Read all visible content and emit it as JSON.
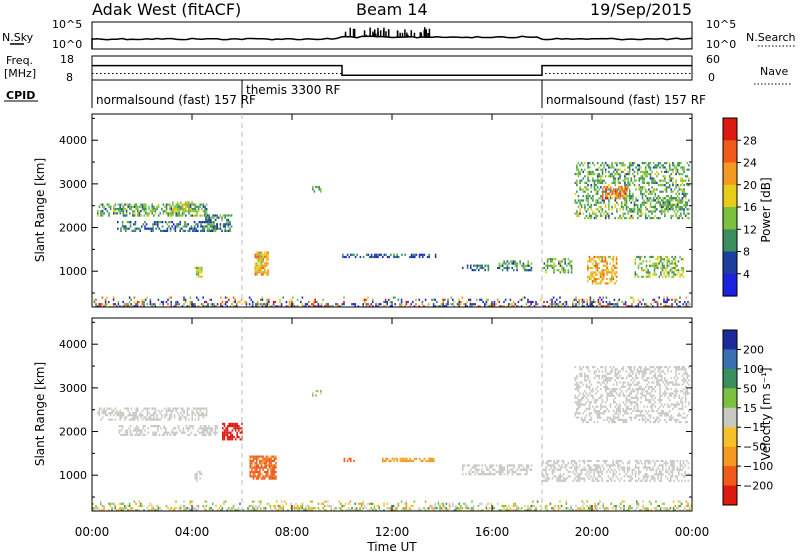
{
  "header": {
    "station": "Adak West (fitACF)",
    "beam": "Beam 14",
    "date": "19/Sep/2015"
  },
  "nsky": {
    "label": "N.Sky",
    "right_label": "N.Search",
    "left_ticks": [
      "10^5",
      "10^0"
    ],
    "right_ticks": [
      "10^5",
      "10^0"
    ]
  },
  "freq": {
    "label_line1": "Freq.",
    "label_line2": "[MHz]",
    "right_label": "Nave",
    "left_ticks": [
      "18",
      "8"
    ],
    "right_ticks": [
      "60",
      "0"
    ]
  },
  "cpid": {
    "label": "CPID",
    "segments": [
      {
        "start_hr": 0,
        "end_hr": 6,
        "text": "normalsound (fast) 157 RF"
      },
      {
        "start_hr": 6,
        "end_hr": 18,
        "text": "themis 3300 RF"
      },
      {
        "start_hr": 18,
        "end_hr": 24,
        "text": "normalsound (fast) 157 RF"
      }
    ]
  },
  "panels": {
    "power": {
      "ylabel": "Slant Range [km]",
      "cbar_label": "Power [dB]",
      "cbar_ticks": [
        "28",
        "24",
        "20",
        "16",
        "12",
        "8",
        "4"
      ],
      "cbar_colors": [
        "#dd1a10",
        "#f05a1a",
        "#f59a20",
        "#e8cc1a",
        "#7cc040",
        "#3a8f5c",
        "#1e3f9e",
        "#1d22e0"
      ]
    },
    "velocity": {
      "ylabel": "Slant Range [km]",
      "cbar_label": "Velocity [m s⁻¹]",
      "cbar_ticks": [
        "200",
        "100",
        "50",
        "15",
        "-15",
        "-50",
        "-100",
        "-200"
      ],
      "cbar_colors": [
        "#1e2a9a",
        "#3a6fb2",
        "#3a8f5c",
        "#7cc040",
        "#c9c9c4",
        "#f5c128",
        "#f59a20",
        "#f05a1a",
        "#dd1a10"
      ]
    }
  },
  "xaxis": {
    "label": "Time UT",
    "ticks": [
      "00:00",
      "04:00",
      "08:00",
      "12:00",
      "16:00",
      "20:00",
      "00:00"
    ]
  },
  "chart_data": {
    "type": "heatmap",
    "x_unit": "hours UT",
    "xlim": [
      0,
      24
    ],
    "y_unit": "km",
    "ylim": [
      180,
      4600
    ],
    "yticks": [
      1000,
      2000,
      3000,
      4000
    ],
    "x_tick_hours": [
      0,
      4,
      8,
      12,
      16,
      20,
      24
    ],
    "mode_boundaries_hr": [
      6,
      18
    ],
    "power_regions": [
      {
        "t0": 0.2,
        "t1": 4.6,
        "r0": 2250,
        "r1": 2550,
        "db": 12,
        "density": 0.55
      },
      {
        "t0": 1.0,
        "t1": 5.0,
        "r0": 1900,
        "r1": 2150,
        "db": 8,
        "density": 0.45
      },
      {
        "t0": 3.2,
        "t1": 4.0,
        "r0": 2350,
        "r1": 2600,
        "db": 16,
        "density": 0.6
      },
      {
        "t0": 4.4,
        "t1": 5.6,
        "r0": 1900,
        "r1": 2300,
        "db": 10,
        "density": 0.5
      },
      {
        "t0": 6.5,
        "t1": 7.1,
        "r0": 900,
        "r1": 1450,
        "db": 20,
        "density": 0.8
      },
      {
        "t0": 4.1,
        "t1": 4.4,
        "r0": 850,
        "r1": 1100,
        "db": 16,
        "density": 0.6
      },
      {
        "t0": 8.8,
        "t1": 9.2,
        "r0": 2800,
        "r1": 2950,
        "db": 12,
        "density": 0.5
      },
      {
        "t0": 10.0,
        "t1": 13.8,
        "r0": 1300,
        "r1": 1400,
        "db": 6,
        "density": 0.45
      },
      {
        "t0": 14.8,
        "t1": 15.9,
        "r0": 1000,
        "r1": 1150,
        "db": 8,
        "density": 0.5
      },
      {
        "t0": 16.2,
        "t1": 17.6,
        "r0": 1000,
        "r1": 1250,
        "db": 10,
        "density": 0.5
      },
      {
        "t0": 18.0,
        "t1": 19.2,
        "r0": 950,
        "r1": 1300,
        "db": 12,
        "density": 0.5
      },
      {
        "t0": 19.3,
        "t1": 23.9,
        "r0": 2200,
        "r1": 3500,
        "db": 12,
        "density": 0.42
      },
      {
        "t0": 20.4,
        "t1": 21.4,
        "r0": 2650,
        "r1": 2950,
        "db": 24,
        "density": 0.6
      },
      {
        "t0": 19.8,
        "t1": 21.0,
        "r0": 700,
        "r1": 1350,
        "db": 20,
        "density": 0.5
      },
      {
        "t0": 21.7,
        "t1": 23.7,
        "r0": 850,
        "r1": 1350,
        "db": 14,
        "density": 0.45
      },
      {
        "t0": 22.5,
        "t1": 23.8,
        "r0": 2350,
        "r1": 2700,
        "db": 12,
        "density": 0.45
      }
    ],
    "velocity_regions": [
      {
        "t0": 0.2,
        "t1": 4.6,
        "r0": 2250,
        "r1": 2550,
        "v": 0,
        "density": 0.55
      },
      {
        "t0": 1.0,
        "t1": 5.0,
        "r0": 1900,
        "r1": 2150,
        "v": 0,
        "density": 0.45
      },
      {
        "t0": 5.2,
        "t1": 6.0,
        "r0": 1800,
        "r1": 2200,
        "v": -220,
        "density": 0.6
      },
      {
        "t0": 6.3,
        "t1": 7.4,
        "r0": 900,
        "r1": 1450,
        "v": -110,
        "density": 0.8
      },
      {
        "t0": 4.1,
        "t1": 4.4,
        "r0": 850,
        "r1": 1100,
        "v": 0,
        "density": 0.5
      },
      {
        "t0": 8.8,
        "t1": 9.2,
        "r0": 2800,
        "r1": 2950,
        "v": 20,
        "density": 0.5
      },
      {
        "t0": 10.0,
        "t1": 10.6,
        "r0": 1300,
        "r1": 1400,
        "v": -150,
        "density": 0.6
      },
      {
        "t0": 11.6,
        "t1": 13.8,
        "r0": 1300,
        "r1": 1400,
        "v": -60,
        "density": 0.55
      },
      {
        "t0": 14.8,
        "t1": 17.6,
        "r0": 1000,
        "r1": 1250,
        "v": 0,
        "density": 0.5
      },
      {
        "t0": 18.0,
        "t1": 23.9,
        "r0": 850,
        "r1": 1350,
        "v": 0,
        "density": 0.45
      },
      {
        "t0": 19.3,
        "t1": 23.9,
        "r0": 2200,
        "r1": 3500,
        "v": 0,
        "density": 0.42
      }
    ],
    "ground_scatter_band_km": [
      180,
      420
    ],
    "cpid_change_hours": [
      6,
      18
    ],
    "freq_level_mhz": [
      {
        "t0": 0,
        "t1": 10,
        "v": 14
      },
      {
        "t0": 10,
        "t1": 18,
        "v": 10
      },
      {
        "t0": 18,
        "t1": 24,
        "v": 14
      }
    ]
  }
}
